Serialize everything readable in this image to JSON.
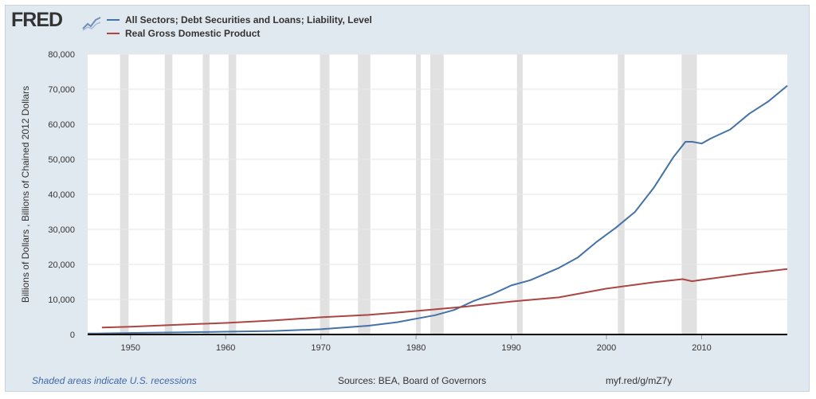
{
  "header": {
    "logo_text": "FRED",
    "logo_icon": "trend-line-icon"
  },
  "footer": {
    "recession_note": "Shaded areas indicate U.S. recessions",
    "sources": "Sources: BEA, Board of Governors",
    "short_url": "myf.red/g/mZ7y"
  },
  "colors": {
    "background": "#e1e9f0",
    "plot_background": "#ffffff",
    "recession_shade": "#e1e1e1",
    "debt_series": "#4572a7",
    "gdp_series": "#aa4643"
  },
  "chart_data": {
    "type": "line",
    "title": "",
    "xlabel": "",
    "ylabel": "Billions of Dollars , Billions of Chained 2012 Dollars",
    "xlim": [
      1945.5,
      2019.0
    ],
    "ylim": [
      0,
      80000
    ],
    "x_ticks": [
      1950,
      1960,
      1970,
      1980,
      1990,
      2000,
      2010
    ],
    "x_tick_labels": [
      "1950",
      "1960",
      "1970",
      "1980",
      "1990",
      "2000",
      "2010"
    ],
    "y_ticks": [
      0,
      10000,
      20000,
      30000,
      40000,
      50000,
      60000,
      70000,
      80000
    ],
    "y_tick_labels": [
      "0",
      "10,000",
      "20,000",
      "30,000",
      "40,000",
      "50,000",
      "60,000",
      "70,000",
      "80,000"
    ],
    "grid": "horizontal",
    "legend_position": "top-left",
    "recessions": [
      [
        1948.9,
        1949.8
      ],
      [
        1953.6,
        1954.4
      ],
      [
        1957.6,
        1958.3
      ],
      [
        1960.3,
        1961.1
      ],
      [
        1969.9,
        1970.9
      ],
      [
        1973.9,
        1975.2
      ],
      [
        1980.0,
        1980.5
      ],
      [
        1981.5,
        1982.9
      ],
      [
        1990.6,
        1991.2
      ],
      [
        2001.2,
        2001.9
      ],
      [
        2007.9,
        2009.5
      ]
    ],
    "series": [
      {
        "name": "All Sectors; Debt Securities and Loans; Liability, Level",
        "color": "#4572a7",
        "x": [
          1945.5,
          1946.5,
          1952.0,
          1955,
          1960,
          1965,
          1970,
          1975,
          1978,
          1980,
          1982,
          1984,
          1986,
          1988,
          1990,
          1992,
          1995,
          1997,
          1999,
          2001,
          2003,
          2005,
          2007,
          2008.3,
          2009.0,
          2010.0,
          2011,
          2013,
          2015,
          2017,
          2019.0
        ],
        "y": [
          300,
          300,
          500,
          600,
          800,
          1000,
          1500,
          2500,
          3500,
          4500,
          5500,
          7000,
          9500,
          11500,
          14000,
          15500,
          19000,
          22000,
          26500,
          30500,
          35000,
          42000,
          50500,
          55000,
          55000,
          54500,
          56000,
          58500,
          63000,
          66500,
          71000
        ]
      },
      {
        "name": "Real Gross Domestic Product",
        "color": "#aa4643",
        "x": [
          1947,
          1950,
          1955,
          1960,
          1965,
          1970,
          1975,
          1980,
          1985,
          1990,
          1995,
          2000,
          2005,
          2008,
          2009,
          2010,
          2015,
          2019.0
        ],
        "y": [
          2000,
          2200,
          2800,
          3300,
          4000,
          4900,
          5600,
          6700,
          7900,
          9400,
          10600,
          13100,
          14900,
          15800,
          15200,
          15600,
          17400,
          18700
        ]
      }
    ]
  }
}
